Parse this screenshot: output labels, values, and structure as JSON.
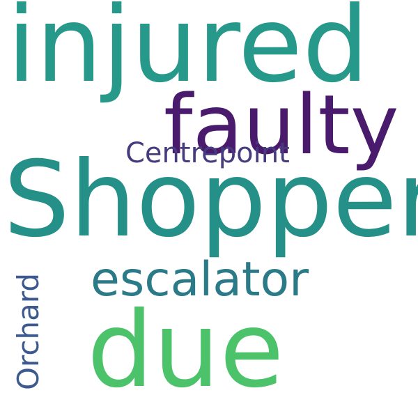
{
  "words": {
    "injured": {
      "text": "injured",
      "color": "#26998a"
    },
    "faulty": {
      "text": "faulty",
      "color": "#4a1b6d"
    },
    "centrepoint": {
      "text": "Centrepoint",
      "color": "#463b7f"
    },
    "shopper": {
      "text": "Shopper",
      "color": "#249088"
    },
    "escalator": {
      "text": "escalator",
      "color": "#2b7a87"
    },
    "due": {
      "text": "due",
      "color": "#4cc36a"
    },
    "orchard": {
      "text": "Orchard",
      "color": "#3c5a8f"
    }
  }
}
